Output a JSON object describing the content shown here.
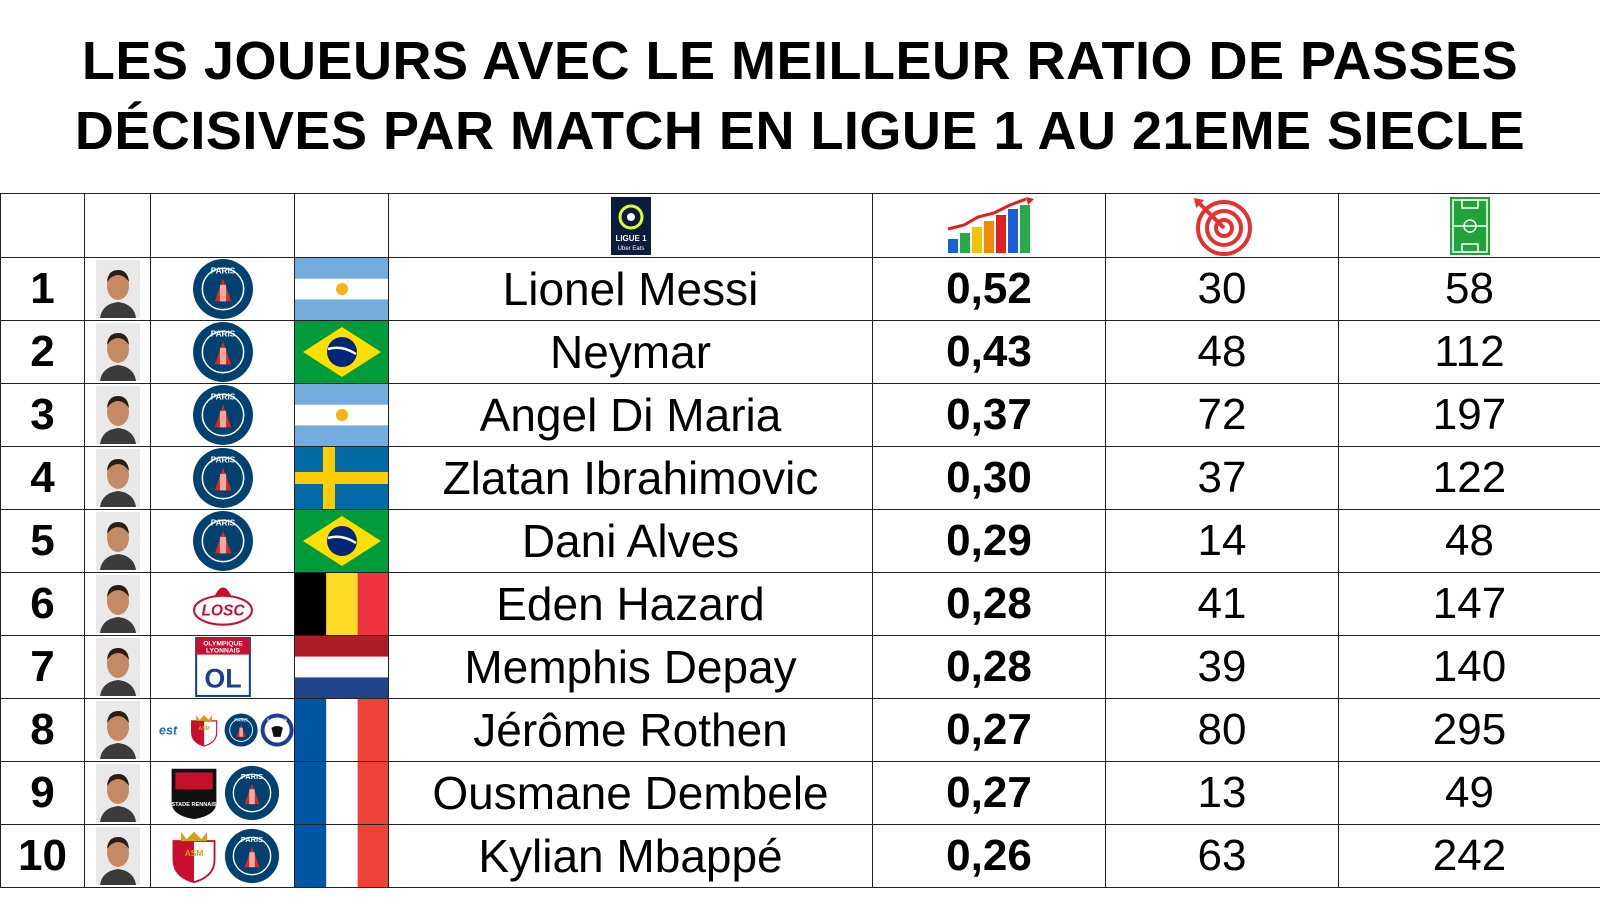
{
  "title": {
    "line1": "LES JOUEURS AVEC LE MEILLEUR RATIO DE PASSES",
    "line2": "DÉCISIVES PAR MATCH EN LIGUE 1 AU 21EME SIECLE"
  },
  "header_icons": {
    "competition": "ligue1-logo-icon",
    "ratio": "rising-bar-chart-icon",
    "assists": "target-icon",
    "matches": "football-pitch-icon",
    "ligue1_text": "LIGUE 1",
    "ligue1_sub": "Uber Eats"
  },
  "colors": {
    "psg_blue": "#004170",
    "psg_red": "#DA291C",
    "border": "#222222"
  },
  "rows": [
    {
      "rank": "1",
      "name": "Lionel Messi",
      "ratio": "0,52",
      "assists": "30",
      "matches": "58",
      "flag": "argentina",
      "clubs": [
        "psg"
      ]
    },
    {
      "rank": "2",
      "name": "Neymar",
      "ratio": "0,43",
      "assists": "48",
      "matches": "112",
      "flag": "brazil",
      "clubs": [
        "psg"
      ]
    },
    {
      "rank": "3",
      "name": "Angel Di Maria",
      "ratio": "0,37",
      "assists": "72",
      "matches": "197",
      "flag": "argentina",
      "clubs": [
        "psg"
      ]
    },
    {
      "rank": "4",
      "name": "Zlatan Ibrahimovic",
      "ratio": "0,30",
      "assists": "37",
      "matches": "122",
      "flag": "sweden",
      "clubs": [
        "psg"
      ]
    },
    {
      "rank": "5",
      "name": "Dani Alves",
      "ratio": "0,29",
      "assists": "14",
      "matches": "48",
      "flag": "brazil",
      "clubs": [
        "psg"
      ]
    },
    {
      "rank": "6",
      "name": "Eden Hazard",
      "ratio": "0,28",
      "assists": "41",
      "matches": "147",
      "flag": "belgium",
      "clubs": [
        "losc"
      ]
    },
    {
      "rank": "7",
      "name": "Memphis Depay",
      "ratio": "0,28",
      "assists": "39",
      "matches": "140",
      "flag": "netherlands",
      "clubs": [
        "ol"
      ]
    },
    {
      "rank": "8",
      "name": "Jérôme Rothen",
      "ratio": "0,27",
      "assists": "80",
      "matches": "295",
      "flag": "france",
      "clubs": [
        "troyes",
        "monaco",
        "psg",
        "bastia"
      ]
    },
    {
      "rank": "9",
      "name": "Ousmane Dembele",
      "ratio": "0,27",
      "assists": "13",
      "matches": "49",
      "flag": "france",
      "clubs": [
        "rennes",
        "psg"
      ]
    },
    {
      "rank": "10",
      "name": "Kylian Mbappé",
      "ratio": "0,26",
      "assists": "63",
      "matches": "242",
      "flag": "france",
      "clubs": [
        "monaco",
        "psg"
      ]
    }
  ],
  "club_labels": {
    "psg": "PARIS",
    "losc": "LOSC",
    "ol_top": "OLYMPIQUE",
    "ol_bottom": "LYONNAIS",
    "troyes": "est",
    "monaco": "ASM",
    "bastia": "S.C. BASTIA",
    "rennes": "STADE RENNAIS"
  }
}
